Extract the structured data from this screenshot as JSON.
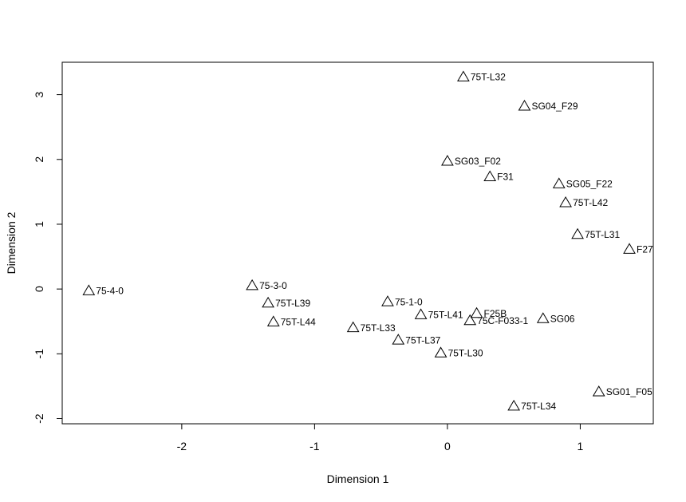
{
  "chart_data": {
    "type": "scatter",
    "title": "",
    "xlabel": "Dimension 1",
    "ylabel": "Dimension 2",
    "xlim": [
      -2.9,
      1.55
    ],
    "ylim": [
      -2.08,
      3.5
    ],
    "xticks": [
      -2,
      -1,
      0,
      1
    ],
    "yticks": [
      -2,
      -1,
      0,
      1,
      2,
      3
    ],
    "xtick_labels": [
      "-2",
      "-1",
      "0",
      "1"
    ],
    "ytick_labels": [
      "-2",
      "-1",
      "0",
      "1",
      "2",
      "3"
    ],
    "marker": "open-triangle",
    "grid": false,
    "points": [
      {
        "label": "75T-L32",
        "x": 0.12,
        "y": 3.27
      },
      {
        "label": "SG04_F29",
        "x": 0.58,
        "y": 2.82
      },
      {
        "label": "SG03_F02",
        "x": 0.0,
        "y": 1.97
      },
      {
        "label": "F31",
        "x": 0.32,
        "y": 1.73
      },
      {
        "label": "SG05_F22",
        "x": 0.84,
        "y": 1.62
      },
      {
        "label": "75T-L42",
        "x": 0.89,
        "y": 1.33
      },
      {
        "label": "75T-L31",
        "x": 0.98,
        "y": 0.84
      },
      {
        "label": "F27",
        "x": 1.37,
        "y": 0.61
      },
      {
        "label": "75-4-0",
        "x": -2.7,
        "y": -0.03
      },
      {
        "label": "75-3-0",
        "x": -1.47,
        "y": 0.05
      },
      {
        "label": "75T-L39",
        "x": -1.35,
        "y": -0.22
      },
      {
        "label": "75-1-0",
        "x": -0.45,
        "y": -0.2
      },
      {
        "label": "75T-L41",
        "x": -0.2,
        "y": -0.4
      },
      {
        "label": "F25B",
        "x": 0.22,
        "y": -0.38
      },
      {
        "label": "75C-F033-1",
        "x": 0.17,
        "y": -0.49
      },
      {
        "label": "SG06",
        "x": 0.72,
        "y": -0.46
      },
      {
        "label": "75T-L44",
        "x": -1.31,
        "y": -0.51
      },
      {
        "label": "75T-L33",
        "x": -0.71,
        "y": -0.6
      },
      {
        "label": "75T-L37",
        "x": -0.37,
        "y": -0.79
      },
      {
        "label": "75T-L30",
        "x": -0.05,
        "y": -0.99
      },
      {
        "label": "SG01_F05",
        "x": 1.14,
        "y": -1.59
      },
      {
        "label": "75T-L34",
        "x": 0.5,
        "y": -1.81
      }
    ]
  }
}
